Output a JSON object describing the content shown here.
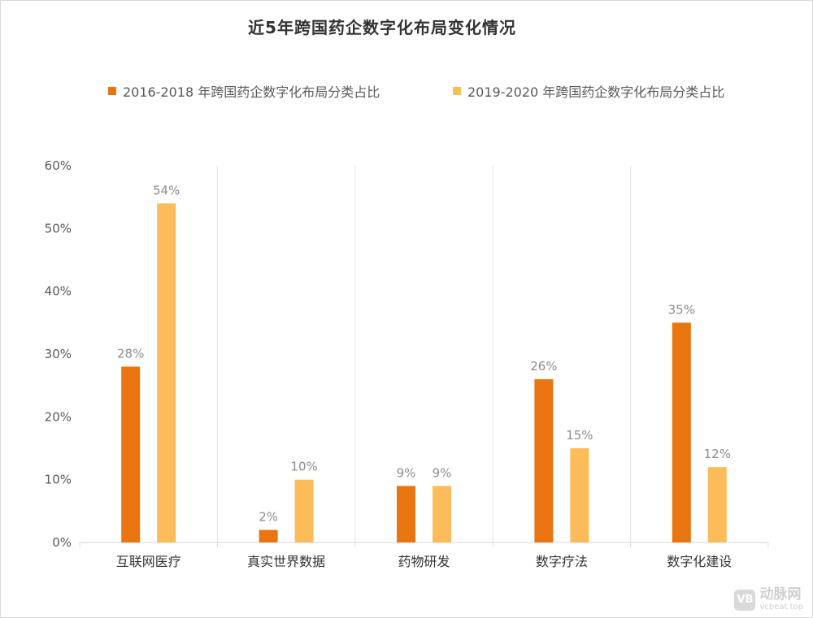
{
  "chart_data": {
    "type": "bar",
    "title": "近5年跨国药企数字化布局变化情况",
    "categories": [
      "互联网医疗",
      "真实世界数据",
      "药物研发",
      "数字疗法",
      "数字化建设"
    ],
    "series": [
      {
        "name": "2016-2018 年跨国药企数字化布局分类占比",
        "values": [
          28,
          2,
          9,
          26,
          35
        ],
        "labels": [
          "28%",
          "2%",
          "9%",
          "26%",
          "35%"
        ],
        "color": "#e8750f"
      },
      {
        "name": "2019-2020 年跨国药企数字化布局分类占比",
        "values": [
          54,
          10,
          9,
          15,
          12
        ],
        "labels": [
          "54%",
          "10%",
          "9%",
          "15%",
          "12%"
        ],
        "color": "#fdbc5a"
      }
    ],
    "ylim": [
      0,
      60
    ],
    "yticks": [
      "0%",
      "10%",
      "20%",
      "30%",
      "40%",
      "50%",
      "60%"
    ],
    "grid": "vertical separators between categories",
    "legend": "top"
  },
  "watermark": {
    "logo": "VB",
    "name": "动脉网",
    "url": "vcbeat.top"
  }
}
